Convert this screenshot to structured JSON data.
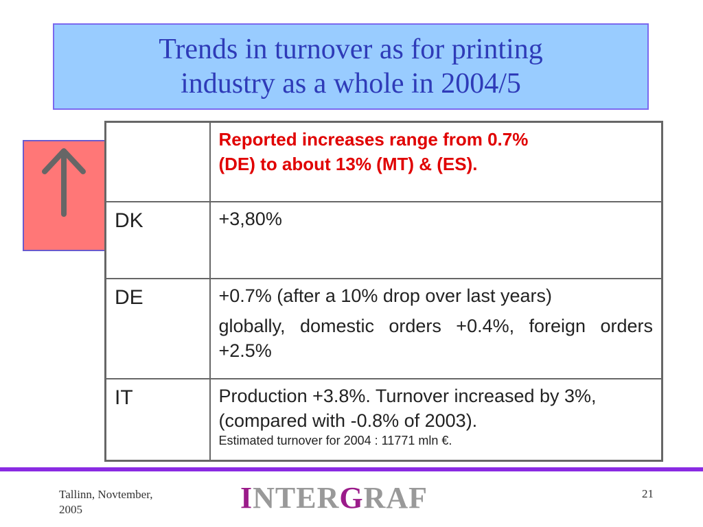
{
  "title": {
    "line1": "Trends in turnover as for printing",
    "line2": "industry as a whole in 2004/5"
  },
  "trend_indicator": {
    "icon": "up-arrow-icon",
    "box_color": "#ff7777",
    "arrow_color": "#666666"
  },
  "table": {
    "header": {
      "country": "",
      "text_line1": "Reported increases range from  0.7%",
      "text_line2": "(DE) to about 13% (MT) & (ES)."
    },
    "rows": [
      {
        "country": "DK",
        "text": "+3,80%"
      },
      {
        "country": "DE",
        "text": "+0.7% (after a 10% drop over last years)",
        "detail": "globally, domestic orders +0.4%, foreign orders +2.5%"
      },
      {
        "country": "IT",
        "text": "Production +3.8%. Turnover increased by 3%, (compared with -0.8% of 2003).",
        "note": "Estimated turnover for 2004 : 11771 mln €."
      }
    ]
  },
  "footer": {
    "place_line1": "Tallinn, Novtember,",
    "place_line2": "2005",
    "logo_i": "I",
    "logo_nter": "NTER",
    "logo_g": "G",
    "logo_raf": "RAF",
    "page_number": "21"
  },
  "colors": {
    "title_bg": "#99ccff",
    "title_text": "#2e3bb8",
    "header_red": "#e00000",
    "footer_line": "#8a2be2",
    "logo_accent": "#9b1b8a",
    "logo_gray": "#999999"
  }
}
